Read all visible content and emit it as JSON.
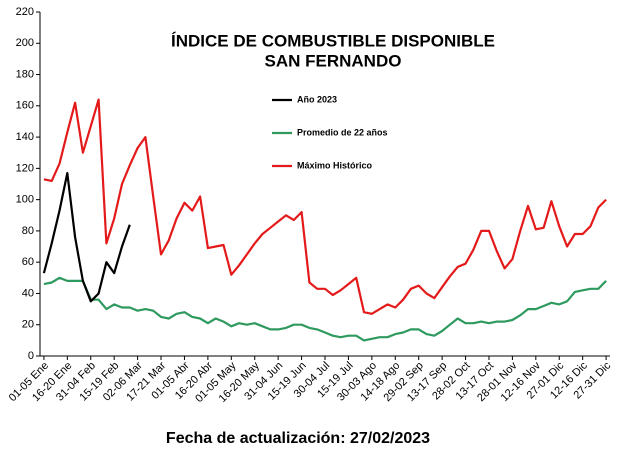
{
  "chart_data": {
    "type": "line",
    "title": "ÍNDICE DE COMBUSTIBLE DISPONIBLE",
    "subtitle": "SAN FERNANDO",
    "annotation": "Fecha de actualización: 27/02/2023",
    "categories": [
      "01-05 Ene",
      null,
      null,
      "16-20 Ene",
      null,
      null,
      "31-04 Feb",
      null,
      null,
      "15-19 Feb",
      null,
      null,
      "02-06 Mar",
      null,
      null,
      "17-21 Mar",
      null,
      null,
      "01-05 Abr",
      null,
      null,
      "16-20 Abr",
      null,
      null,
      "01-05 May",
      null,
      null,
      "16-20 May",
      null,
      null,
      "31-04 Jun",
      null,
      null,
      "15-19 Jun",
      null,
      null,
      "30-04 Jul",
      null,
      null,
      "15-19 Jul",
      null,
      null,
      "30-03 Ago",
      null,
      null,
      "14-18 Ago",
      null,
      null,
      "29-02 Sep",
      null,
      null,
      "13-17 Sep",
      null,
      null,
      "28-02 Oct",
      null,
      null,
      "13-17 Oct",
      null,
      null,
      "28-01 Nov",
      null,
      null,
      "12-16 Nov",
      null,
      null,
      "27-01 Dic",
      null,
      null,
      "12-16 Dic",
      null,
      null,
      "27-31 Dic"
    ],
    "series": [
      {
        "name": "Año 2023",
        "color": "#000000",
        "values": [
          53,
          72,
          93,
          117,
          76,
          48,
          35,
          40,
          60,
          53,
          70,
          84,
          null,
          null,
          null,
          null,
          null,
          null,
          null,
          null,
          null,
          null,
          null,
          null,
          null,
          null,
          null,
          null,
          null,
          null,
          null,
          null,
          null,
          null,
          null,
          null,
          null,
          null,
          null,
          null,
          null,
          null,
          null,
          null,
          null,
          null,
          null,
          null,
          null,
          null,
          null,
          null,
          null,
          null,
          null,
          null,
          null,
          null,
          null,
          null,
          null,
          null,
          null,
          null,
          null,
          null,
          null,
          null,
          null,
          null,
          null,
          null,
          null
        ]
      },
      {
        "name": "Promedio de 22 años",
        "color": "#2e9a5e",
        "values": [
          46,
          47,
          50,
          48,
          48,
          48,
          36,
          36,
          30,
          33,
          31,
          31,
          29,
          30,
          29,
          25,
          24,
          27,
          28,
          25,
          24,
          21,
          24,
          22,
          19,
          21,
          20,
          21,
          19,
          17,
          17,
          18,
          20,
          20,
          18,
          17,
          15,
          13,
          12,
          13,
          13,
          10,
          11,
          12,
          12,
          14,
          15,
          17,
          17,
          14,
          13,
          16,
          20,
          24,
          21,
          21,
          22,
          21,
          22,
          22,
          23,
          26,
          30,
          30,
          32,
          34,
          33,
          35,
          41,
          42,
          43,
          43,
          48
        ]
      },
      {
        "name": "Máximo Histórico",
        "color": "#e41a1a",
        "values": [
          113,
          112,
          123,
          143,
          162,
          130,
          147,
          164,
          72,
          88,
          110,
          122,
          133,
          140,
          102,
          65,
          74,
          88,
          98,
          93,
          102,
          69,
          70,
          71,
          52,
          58,
          65,
          72,
          78,
          82,
          86,
          90,
          87,
          92,
          47,
          43,
          43,
          39,
          42,
          46,
          50,
          28,
          27,
          30,
          33,
          31,
          36,
          43,
          45,
          40,
          37,
          44,
          51,
          57,
          59,
          68,
          80,
          80,
          67,
          56,
          62,
          80,
          96,
          81,
          82,
          99,
          83,
          70,
          78,
          78,
          83,
          95,
          100
        ]
      }
    ],
    "ylim": [
      0,
      220
    ],
    "yticks": [
      0,
      20,
      40,
      60,
      80,
      100,
      120,
      140,
      160,
      180,
      200,
      220
    ],
    "grid": false
  }
}
